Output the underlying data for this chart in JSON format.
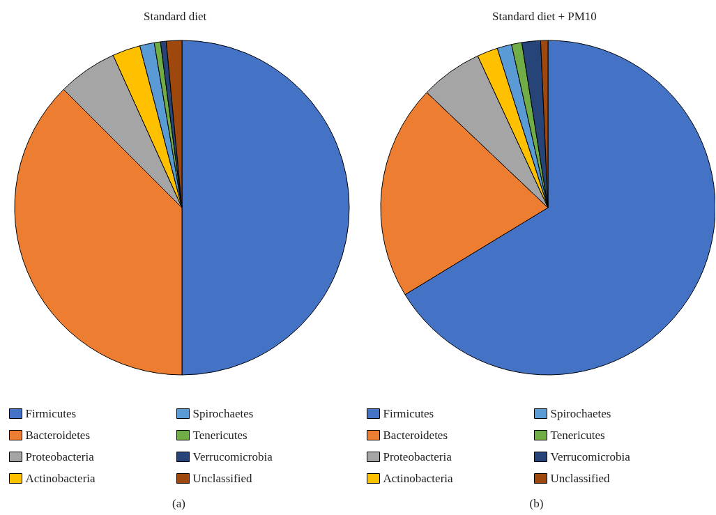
{
  "chart_data": [
    {
      "type": "pie",
      "title": "Standard diet",
      "categories": [
        "Firmicutes",
        "Bacteroidetes",
        "Proteobacteria",
        "Actinobacteria",
        "Spirochaetes",
        "Tenericutes",
        "Verrucomicrobia",
        "Unclassified"
      ],
      "values": [
        50,
        37.5,
        5.75,
        2.7,
        1.4,
        0.6,
        0.55,
        1.5
      ],
      "colors": [
        "#4472c4",
        "#ed7d31",
        "#a5a5a5",
        "#ffc000",
        "#5b9bd5",
        "#70ad47",
        "#264478",
        "#9e480e"
      ],
      "legend": "bottom",
      "annotations": [
        "(a)"
      ]
    },
    {
      "type": "pie",
      "title": "Standard diet + PM10",
      "categories": [
        "Firmicutes",
        "Bacteroidetes",
        "Proteobacteria",
        "Actinobacteria",
        "Spirochaetes",
        "Tenericutes",
        "Verrucomicrobia",
        "Unclassified"
      ],
      "values": [
        66.3,
        20.8,
        6.0,
        2.0,
        1.4,
        1.0,
        1.8,
        0.7
      ],
      "colors": [
        "#4472c4",
        "#ed7d31",
        "#a5a5a5",
        "#ffc000",
        "#5b9bd5",
        "#70ad47",
        "#264478",
        "#9e480e"
      ],
      "legend": "bottom",
      "annotations": [
        "(b)"
      ]
    }
  ]
}
